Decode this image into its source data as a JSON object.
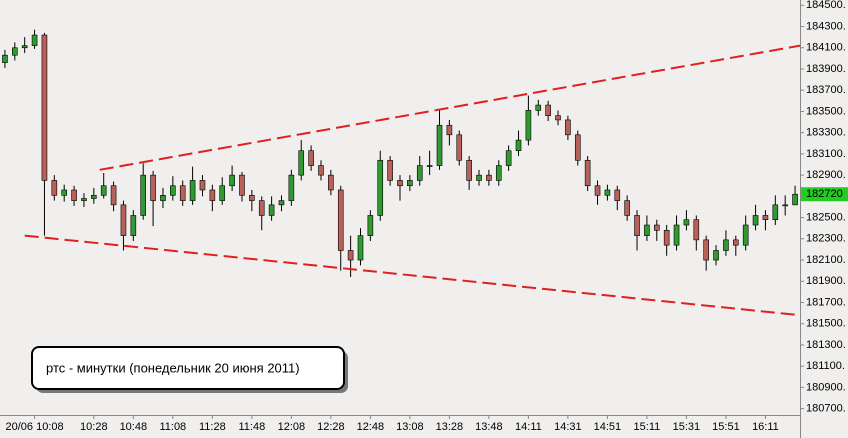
{
  "chart_data": {
    "type": "candlestick",
    "annotation": "ртс - минутки (понедельник 20 июня 2011)",
    "categories": [
      null,
      null,
      null,
      "20/06 10:08",
      null,
      null,
      null,
      null,
      null,
      "10:28",
      null,
      null,
      null,
      "10:48",
      null,
      null,
      null,
      "11:08",
      null,
      null,
      null,
      "11:28",
      null,
      null,
      null,
      "11:48",
      null,
      null,
      null,
      "12:08",
      null,
      null,
      null,
      "12:28",
      null,
      null,
      null,
      "12:48",
      null,
      null,
      null,
      "13:08",
      null,
      null,
      null,
      "13:28",
      null,
      null,
      null,
      "13:48",
      null,
      null,
      null,
      "14:11",
      null,
      null,
      null,
      "14:31",
      null,
      null,
      null,
      "14:51",
      null,
      null,
      null,
      "15:11",
      null,
      null,
      null,
      "15:31",
      null,
      null,
      null,
      "15:51",
      null,
      null,
      null,
      "16:11",
      null,
      null,
      null
    ],
    "open": [
      183960,
      184030,
      184100,
      184120,
      184220,
      182850,
      182710,
      182760,
      182660,
      182680,
      182710,
      182800,
      182620,
      182330,
      182520,
      182900,
      182660,
      182710,
      182800,
      182660,
      182850,
      182760,
      182660,
      182800,
      182900,
      182710,
      182660,
      182520,
      182620,
      182660,
      182900,
      183130,
      182990,
      182900,
      182760,
      182190,
      182100,
      182330,
      182520,
      183040,
      182850,
      182800,
      182850,
      182990,
      182990,
      183370,
      183280,
      183040,
      182850,
      182900,
      182850,
      182990,
      183130,
      183230,
      183510,
      183560,
      183460,
      183420,
      183280,
      183040,
      182800,
      182710,
      182760,
      182660,
      182520,
      182330,
      182430,
      182380,
      182240,
      182430,
      182480,
      182290,
      182100,
      182190,
      182290,
      182240,
      182430,
      182520,
      182480,
      182620,
      182620
    ],
    "high": [
      184080,
      184150,
      184200,
      184270,
      184240,
      182900,
      182810,
      182800,
      182730,
      182780,
      182920,
      182840,
      182660,
      182570,
      183010,
      182940,
      182780,
      182890,
      182850,
      182980,
      182900,
      182810,
      182880,
      182990,
      182930,
      182760,
      182700,
      182700,
      182710,
      182950,
      183230,
      183180,
      183040,
      182950,
      182800,
      182330,
      182400,
      182570,
      183130,
      183080,
      182900,
      182900,
      183080,
      183130,
      183510,
      183420,
      183320,
      183080,
      182950,
      182950,
      183040,
      183180,
      183320,
      183650,
      183610,
      183600,
      183510,
      183460,
      183320,
      183080,
      182850,
      182810,
      182800,
      182710,
      182570,
      182520,
      182480,
      182430,
      182520,
      182570,
      182520,
      182330,
      182240,
      182380,
      182330,
      182520,
      182620,
      182570,
      182710,
      182710,
      182800
    ],
    "low": [
      183910,
      183980,
      184050,
      184090,
      182330,
      182660,
      182650,
      182610,
      182600,
      182630,
      182680,
      182560,
      182190,
      182280,
      182480,
      182420,
      182590,
      182660,
      182610,
      182620,
      182700,
      182560,
      182620,
      182750,
      182650,
      182560,
      182380,
      182470,
      182560,
      182610,
      182850,
      182940,
      182850,
      182710,
      182000,
      181940,
      182050,
      182280,
      182470,
      182800,
      182660,
      182750,
      182800,
      182900,
      182950,
      183180,
      182990,
      182760,
      182800,
      182800,
      182800,
      182940,
      183080,
      183180,
      183460,
      183410,
      183370,
      183230,
      182990,
      182750,
      182620,
      182660,
      182570,
      182470,
      182190,
      182280,
      182280,
      182140,
      182190,
      182380,
      182190,
      182000,
      182050,
      182140,
      182140,
      182190,
      182380,
      182380,
      182430,
      182520,
      182620
    ],
    "close": [
      184030,
      184100,
      184120,
      184220,
      182850,
      182710,
      182760,
      182660,
      182680,
      182710,
      182800,
      182620,
      182330,
      182520,
      182900,
      182660,
      182710,
      182800,
      182660,
      182850,
      182760,
      182660,
      182800,
      182900,
      182710,
      182660,
      182520,
      182620,
      182660,
      182900,
      183130,
      182990,
      182900,
      182760,
      182190,
      182100,
      182330,
      182520,
      183040,
      182850,
      182800,
      182850,
      182990,
      182990,
      183370,
      183280,
      183040,
      182850,
      182900,
      182850,
      182990,
      183130,
      183230,
      183510,
      183560,
      183460,
      183420,
      183280,
      183040,
      182800,
      182710,
      182760,
      182660,
      182520,
      182330,
      182430,
      182380,
      182240,
      182430,
      182480,
      182290,
      182100,
      182190,
      182290,
      182240,
      182430,
      182520,
      182480,
      182620,
      182620,
      182720
    ],
    "up_color": "#2f9a2f",
    "down_color": "#b8605a",
    "last_price": 182720,
    "last_price_color": "#22cc22",
    "trendlines": [
      {
        "color": "#e02020",
        "x": [
          9.6,
          80.5
        ],
        "values": [
          182950,
          184120
        ]
      },
      {
        "color": "#e02020",
        "x": [
          2.0,
          80.5
        ],
        "values": [
          182330,
          181580
        ]
      }
    ],
    "ylim": [
      180640,
      184550
    ],
    "yticks": [
      {
        "value": 184500,
        "label": "184500."
      },
      {
        "value": 184300,
        "label": "184300."
      },
      {
        "value": 184100,
        "label": "184100."
      },
      {
        "value": 183900,
        "label": "183900."
      },
      {
        "value": 183700,
        "label": "183700."
      },
      {
        "value": 183500,
        "label": "183500."
      },
      {
        "value": 183300,
        "label": "183300."
      },
      {
        "value": 183100,
        "label": "183100."
      },
      {
        "value": 182900,
        "label": "182900."
      },
      {
        "value": 182700,
        "label": "182700."
      },
      {
        "value": 182500,
        "label": "182500."
      },
      {
        "value": 182300,
        "label": "182300."
      },
      {
        "value": 182100,
        "label": "182100."
      },
      {
        "value": 181900,
        "label": "181900."
      },
      {
        "value": 181700,
        "label": "181700."
      },
      {
        "value": 181500,
        "label": "181500."
      },
      {
        "value": 181300,
        "label": "181300."
      },
      {
        "value": 181100,
        "label": "181100."
      },
      {
        "value": 180900,
        "label": "180900."
      },
      {
        "value": 180700,
        "label": "180700."
      }
    ],
    "grid": false
  }
}
